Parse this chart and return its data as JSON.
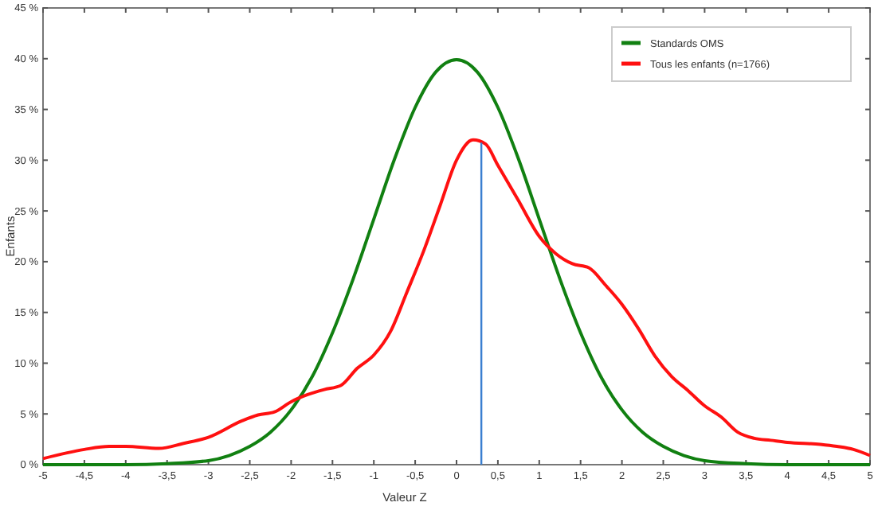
{
  "chart_data": {
    "type": "line",
    "xlabel": "Valeur Z",
    "ylabel": "Enfants",
    "xlim": [
      -5,
      5
    ],
    "xticks": [
      {
        "value": -5,
        "label": "-5"
      },
      {
        "value": -4.5,
        "label": "-4,5"
      },
      {
        "value": -4,
        "label": "-4"
      },
      {
        "value": -3.5,
        "label": "-3,5"
      },
      {
        "value": -3,
        "label": "-3"
      },
      {
        "value": -2.5,
        "label": "-2,5"
      },
      {
        "value": -2,
        "label": "-2"
      },
      {
        "value": -1.5,
        "label": "-1,5"
      },
      {
        "value": -1,
        "label": "-1"
      },
      {
        "value": -0.5,
        "label": "-0,5"
      },
      {
        "value": 0,
        "label": "0"
      },
      {
        "value": 0.5,
        "label": "0,5"
      },
      {
        "value": 1,
        "label": "1"
      },
      {
        "value": 1.5,
        "label": "1,5"
      },
      {
        "value": 2,
        "label": "2"
      },
      {
        "value": 2.5,
        "label": "2,5"
      },
      {
        "value": 3,
        "label": "3"
      },
      {
        "value": 3.5,
        "label": "3,5"
      },
      {
        "value": 4,
        "label": "4"
      },
      {
        "value": 4.5,
        "label": "4,5"
      },
      {
        "value": 5,
        "label": "5"
      }
    ],
    "ylim": [
      0,
      45
    ],
    "yticks": [
      {
        "value": 0,
        "label": "0 %"
      },
      {
        "value": 5,
        "label": "5 %"
      },
      {
        "value": 10,
        "label": "10 %"
      },
      {
        "value": 15,
        "label": "15 %"
      },
      {
        "value": 20,
        "label": "20 %"
      },
      {
        "value": 25,
        "label": "25 %"
      },
      {
        "value": 30,
        "label": "30 %"
      },
      {
        "value": 35,
        "label": "35 %"
      },
      {
        "value": 40,
        "label": "40 %"
      },
      {
        "value": 45,
        "label": "45 %"
      }
    ],
    "grid": false,
    "legend": "top right",
    "marker": "none",
    "line_style": "solid",
    "ref_lines": [
      {
        "axis": "x",
        "value": 0.3,
        "color": "#3a7fd0"
      }
    ],
    "series": [
      {
        "name": "Standards OMS",
        "color": "#118011",
        "x": [
          -5,
          -4,
          -3.5,
          -3,
          -2.75,
          -2.5,
          -2.25,
          -2,
          -1.75,
          -1.5,
          -1.25,
          -1,
          -0.75,
          -0.5,
          -0.25,
          0,
          0.25,
          0.5,
          0.75,
          1,
          1.25,
          1.5,
          1.75,
          2,
          2.25,
          2.5,
          2.75,
          3,
          3.5,
          4,
          5
        ],
        "values": [
          0,
          0,
          0.1,
          0.4,
          0.9,
          1.8,
          3.2,
          5.4,
          8.6,
          13.0,
          18.3,
          24.2,
          30.1,
          35.2,
          38.7,
          39.9,
          38.7,
          35.2,
          30.1,
          24.2,
          18.3,
          13.0,
          8.6,
          5.4,
          3.2,
          1.8,
          0.9,
          0.4,
          0.1,
          0,
          0
        ]
      },
      {
        "name": "Tous les enfants (n=1766)",
        "color": "#ff1010",
        "x": [
          -5,
          -4.5,
          -4.2,
          -4,
          -3.6,
          -3.3,
          -3,
          -2.6,
          -2.4,
          -2.2,
          -2,
          -1.8,
          -1.6,
          -1.4,
          -1.2,
          -1,
          -0.8,
          -0.6,
          -0.4,
          -0.2,
          0,
          0.2,
          0.35,
          0.5,
          0.75,
          1,
          1.2,
          1.4,
          1.6,
          1.8,
          2,
          2.2,
          2.4,
          2.6,
          2.8,
          3,
          3.2,
          3.4,
          3.6,
          3.8,
          4,
          4.4,
          4.6,
          4.8,
          5
        ],
        "values": [
          0.6,
          1.5,
          1.8,
          1.8,
          1.6,
          2.1,
          2.7,
          4.3,
          4.9,
          5.2,
          6.2,
          6.9,
          7.4,
          7.8,
          9.5,
          10.8,
          13.1,
          17,
          21,
          25.5,
          30,
          32,
          31.6,
          29.5,
          26,
          22.5,
          20.8,
          19.8,
          19.4,
          17.7,
          15.8,
          13.4,
          10.7,
          8.7,
          7.3,
          5.8,
          4.7,
          3.2,
          2.6,
          2.4,
          2.2,
          2,
          1.8,
          1.5,
          0.9
        ]
      }
    ]
  }
}
